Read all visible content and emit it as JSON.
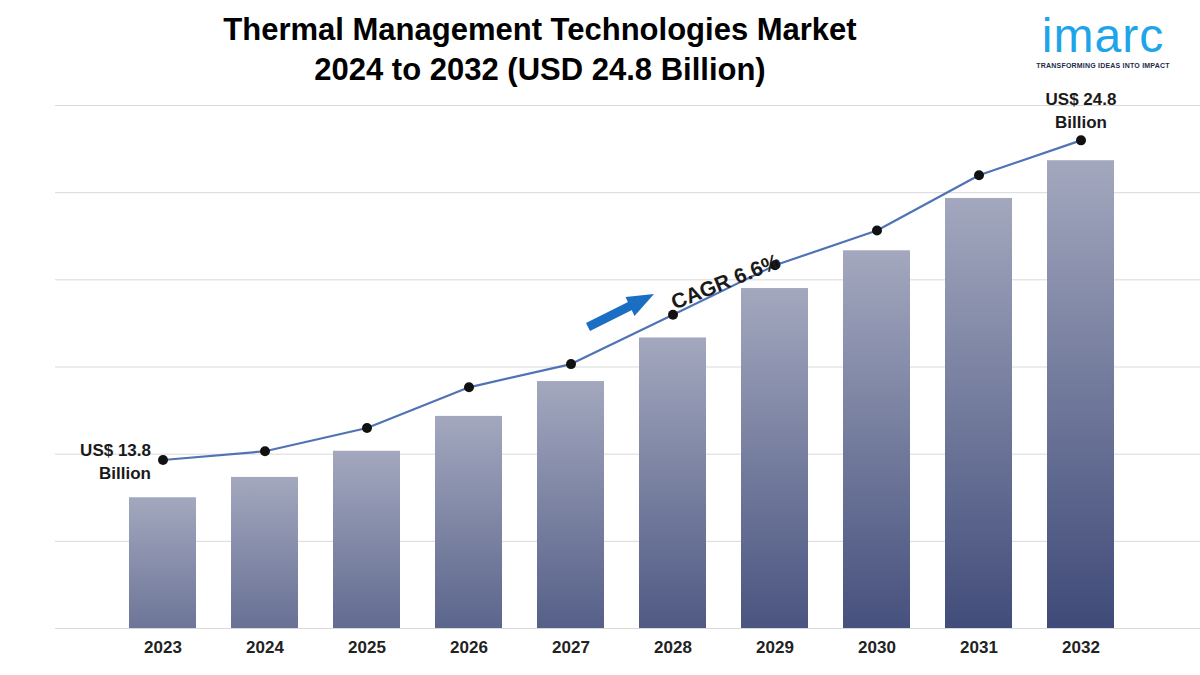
{
  "chart_data": {
    "type": "bar",
    "title": "Thermal Management Technologies Market\n2024 to 2032 (USD 24.8 Billion)",
    "logo": {
      "name": "imarc",
      "tagline": "TRANSFORMING IDEAS INTO IMPACT"
    },
    "categories": [
      "2023",
      "2024",
      "2025",
      "2026",
      "2027",
      "2028",
      "2029",
      "2030",
      "2031",
      "2032"
    ],
    "series": [
      {
        "type": "bar",
        "color": "#0d1b55",
        "values": [
          12.5,
          13.2,
          14.1,
          15.3,
          16.5,
          18.0,
          19.7,
          21.0,
          22.8,
          24.1
        ]
      },
      {
        "type": "line",
        "color": "#4f73b5",
        "marker": "circle",
        "values": [
          13.8,
          14.1,
          14.9,
          16.3,
          17.1,
          18.8,
          20.5,
          21.7,
          23.6,
          24.8
        ]
      }
    ],
    "annotations": [
      {
        "text": "US$ 13.8\nBillion",
        "category": "2023"
      },
      {
        "text": "US$ 24.8\nBillion",
        "category": "2032"
      },
      {
        "text": "CAGR 6.6%",
        "category": "2028"
      }
    ],
    "ylim": [
      8,
      26
    ],
    "yticks": [
      8,
      11,
      14,
      17,
      20,
      23,
      26
    ],
    "grid": true,
    "tick_labels": "x"
  }
}
